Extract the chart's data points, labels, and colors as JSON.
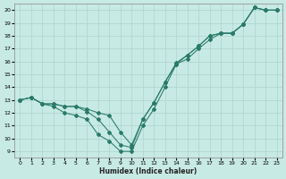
{
  "xlabel": "Humidex (Indice chaleur)",
  "ylabel": "",
  "bg_color": "#c8eae4",
  "grid_color": "#b0d8d0",
  "line_color": "#2a7a6a",
  "xlim": [
    -0.5,
    23.5
  ],
  "ylim": [
    8.5,
    20.5
  ],
  "xticks": [
    0,
    1,
    2,
    3,
    4,
    5,
    6,
    7,
    8,
    9,
    10,
    11,
    12,
    13,
    14,
    15,
    16,
    17,
    18,
    19,
    20,
    21,
    22,
    23
  ],
  "yticks": [
    9,
    10,
    11,
    12,
    13,
    14,
    15,
    16,
    17,
    18,
    19,
    20
  ],
  "line1_x": [
    0,
    1,
    2,
    3,
    4,
    5,
    6,
    7,
    8,
    9,
    10,
    11,
    12,
    13,
    14,
    15,
    16,
    17,
    18,
    19,
    20,
    21,
    22,
    23
  ],
  "line1_y": [
    13.0,
    13.2,
    12.7,
    12.7,
    12.5,
    12.5,
    12.1,
    11.5,
    10.5,
    9.5,
    9.3,
    11.5,
    12.8,
    14.4,
    15.8,
    16.5,
    17.2,
    18.0,
    18.2,
    18.2,
    18.9,
    20.2,
    20.0,
    20.0
  ],
  "line2_x": [
    0,
    1,
    2,
    3,
    4,
    5,
    6,
    7,
    8,
    9,
    10,
    11,
    12,
    13,
    14,
    15,
    16,
    17,
    18,
    19,
    20,
    21,
    22,
    23
  ],
  "line2_y": [
    13.0,
    13.2,
    12.7,
    12.7,
    12.5,
    12.5,
    12.3,
    12.0,
    11.8,
    10.5,
    9.5,
    11.5,
    12.8,
    14.4,
    15.9,
    16.5,
    17.2,
    18.0,
    18.2,
    18.2,
    18.9,
    20.2,
    20.0,
    20.0
  ],
  "line3_x": [
    0,
    1,
    2,
    3,
    4,
    5,
    6,
    7,
    8,
    9,
    10,
    11,
    12,
    13,
    14,
    15,
    16,
    17,
    18,
    19,
    20,
    21,
    22,
    23
  ],
  "line3_y": [
    13.0,
    13.2,
    12.7,
    12.5,
    12.0,
    11.8,
    11.5,
    10.3,
    9.8,
    9.0,
    9.0,
    11.0,
    12.3,
    14.0,
    15.8,
    16.2,
    17.0,
    17.7,
    18.2,
    18.2,
    18.9,
    20.2,
    20.0,
    20.0
  ]
}
